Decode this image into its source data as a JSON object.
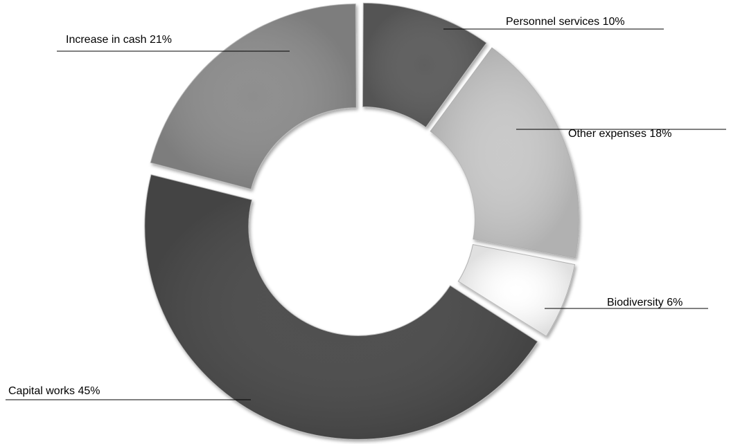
{
  "chart_data": {
    "type": "pie",
    "variant": "donut-exploded",
    "title": "",
    "slices": [
      {
        "label": "Personnel services 10%",
        "value": 10,
        "color": "#5e5e5e"
      },
      {
        "label": "Other expenses 18%",
        "value": 18,
        "color": "#c9c9c9"
      },
      {
        "label": "Biodiversity 6%",
        "value": 6,
        "color": "#ffffff"
      },
      {
        "label": "Capital works 45%",
        "value": 45,
        "color": "#4e4e4e"
      },
      {
        "label": "Increase in cash 21%",
        "value": 21,
        "color": "#8e8e8e"
      }
    ],
    "legend": "none",
    "start_position": "top"
  }
}
